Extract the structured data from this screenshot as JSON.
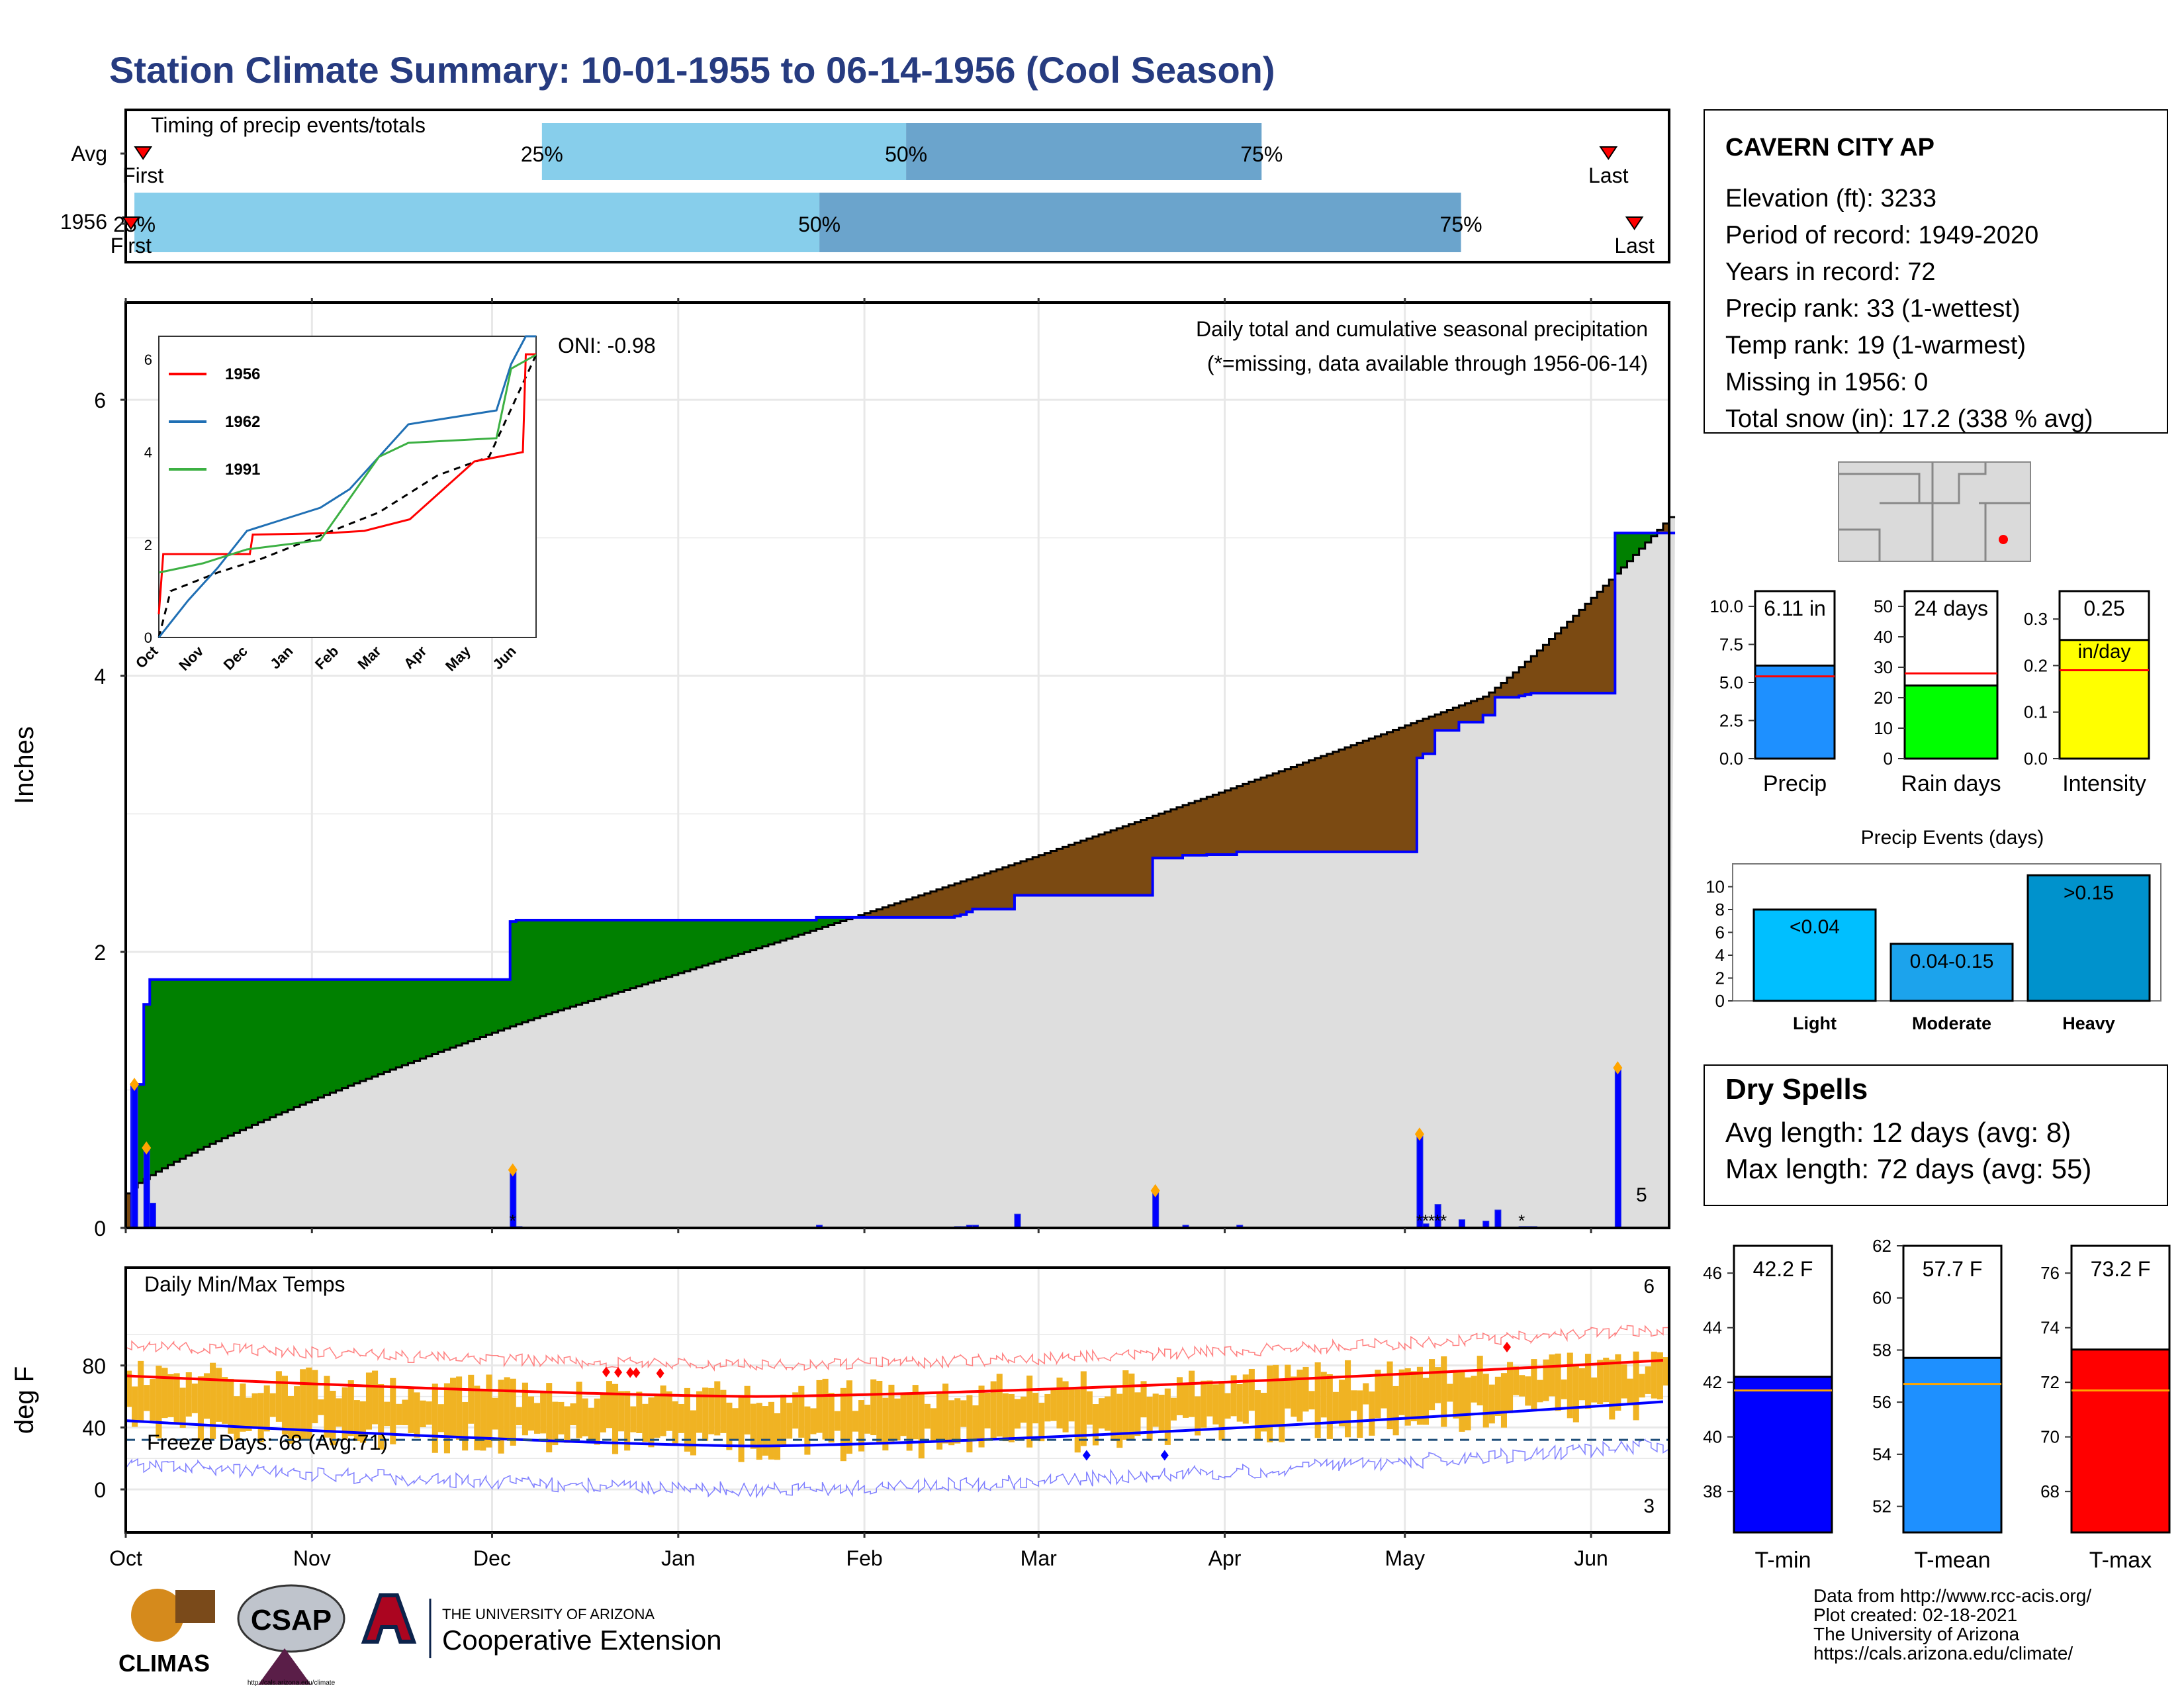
{
  "title": "Station Climate Summary: 10-01-1955 to 06-14-1956 (Cool Season)",
  "colors": {
    "title": "#263b80",
    "precip_green": "#008000",
    "below_brown": "#7b4a12",
    "normal_gray": "#dedede",
    "line_blue": "#0000ff",
    "bar_light": "#87ceeb",
    "bar_dark": "#6ba4cc",
    "tmax_red": "#ff0000",
    "tmin_blue": "#0000ff",
    "temp_bar": "#f0b323",
    "dry_red": "#a52a2a"
  },
  "timing": {
    "label": "Timing of precip events/totals",
    "rows": [
      {
        "name": "Avg",
        "first_label": "First",
        "last_label": "Last",
        "p25": "25%",
        "p50": "50%",
        "p75": "75%",
        "first": 0.1,
        "p25v": 2.4,
        "p50v": 4.5,
        "p75v": 6.55,
        "last": 8.55
      },
      {
        "name": "1956",
        "first_label": "First",
        "last_label": "Last",
        "p25": "25%",
        "p50": "50%",
        "p75": "75%",
        "first": 0.03,
        "p25v": 0.05,
        "p50v": 4.0,
        "p75v": 7.7,
        "last": 8.7
      }
    ]
  },
  "precip_panel": {
    "ylabel": "Inches",
    "oni": "ONI: -0.98",
    "heading": "Daily total and cumulative seasonal precipitation",
    "note": "(*=missing, data available through 1956-06-14)",
    "snow_days_label": "5",
    "yticks": [
      "0",
      "2",
      "4",
      "6"
    ]
  },
  "temp_panel": {
    "ylabel": "deg F",
    "heading": "Daily Min/Max Temps",
    "freeze": "Freeze Days: 68 (Avg:71)",
    "max_count": "6",
    "min_count": "3",
    "yticks": [
      "0",
      "40",
      "80"
    ]
  },
  "months": [
    "Oct",
    "Nov",
    "Dec",
    "Jan",
    "Feb",
    "Mar",
    "Apr",
    "May",
    "Jun"
  ],
  "inset": {
    "legend": [
      "1956",
      "1962",
      "1991"
    ],
    "months": [
      "Oct",
      "Nov",
      "Dec",
      "Jan",
      "Feb",
      "Mar",
      "Apr",
      "May",
      "Jun"
    ],
    "yticks": [
      "0",
      "2",
      "4",
      "6"
    ]
  },
  "station": {
    "name": "CAVERN CITY AP",
    "lines": [
      "Elevation (ft): 3233",
      "Period of record: 1949-2020",
      "Years in record: 72",
      "Precip rank: 33 (1-wettest)",
      "Temp rank: 19 (1-warmest)",
      "Missing in 1956: 0",
      "Total snow (in): 17.2 (338 % avg)"
    ]
  },
  "mini_bars": [
    {
      "label": "Precip",
      "value_text": "6.11 in",
      "value": 6.11,
      "avg": 5.4,
      "max": 11,
      "ticks": [
        "0.0",
        "2.5",
        "5.0",
        "7.5",
        "10.0"
      ],
      "color": "#1e90ff"
    },
    {
      "label": "Rain days",
      "value_text": "24 days",
      "value": 24,
      "avg": 28,
      "max": 55,
      "ticks": [
        "0",
        "10",
        "20",
        "30",
        "40",
        "50"
      ],
      "color": "#00ff00"
    },
    {
      "label": "Intensity",
      "value_text": "0.25",
      "value_text2": "in/day",
      "value": 0.255,
      "avg": 0.19,
      "max": 0.36,
      "ticks": [
        "0.0",
        "0.1",
        "0.2",
        "0.3"
      ],
      "color": "#ffff00"
    }
  ],
  "events": {
    "title": "Precip Events (days)",
    "ticks": [
      "0",
      "2",
      "4",
      "6",
      "8",
      "10"
    ],
    "bars": [
      {
        "label": "Light",
        "inner": "<0.04",
        "value": 8,
        "color": "#00bfff"
      },
      {
        "label": "Moderate",
        "inner": "0.04-0.15",
        "value": 5,
        "color": "#1ca3ec"
      },
      {
        "label": "Heavy",
        "inner": ">0.15",
        "value": 11,
        "color": "#0092cc"
      }
    ]
  },
  "dry": {
    "title": "Dry Spells",
    "avg": "Avg length: 12 days (avg: 8)",
    "max": "Max length: 72 days (avg: 55)"
  },
  "temp_bars": [
    {
      "label": "T-min",
      "value_text": "42.2 F",
      "value": 42.2,
      "avg": 41.7,
      "min": 36.5,
      "max": 47,
      "ticks": [
        "38",
        "40",
        "42",
        "44",
        "46"
      ],
      "color": "#0000ff"
    },
    {
      "label": "T-mean",
      "value_text": "57.7 F",
      "value": 57.7,
      "avg": 56.7,
      "min": 51,
      "max": 62,
      "ticks": [
        "52",
        "54",
        "56",
        "58",
        "60",
        "62"
      ],
      "color": "#1e90ff"
    },
    {
      "label": "T-max",
      "value_text": "73.2 F",
      "value": 73.2,
      "avg": 71.7,
      "min": 66.5,
      "max": 77,
      "ticks": [
        "68",
        "70",
        "72",
        "74",
        "76"
      ],
      "color": "#ff0000"
    }
  ],
  "footer": {
    "lines": [
      "Data from http://www.rcc-acis.org/",
      "Plot created: 02-18-2021",
      "The University of Arizona",
      "https://cals.arizona.edu/climate/"
    ],
    "climas": "CLIMAS",
    "csap": "CSAP",
    "csap_url": "http://cals.arizona.edu/climate",
    "ua_small": "THE UNIVERSITY OF ARIZONA",
    "ua_big": "Cooperative Extension"
  }
}
